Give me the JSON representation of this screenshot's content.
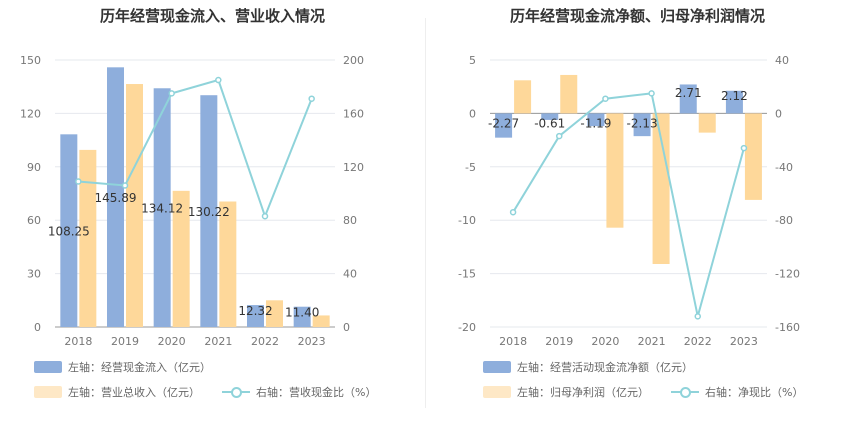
{
  "colors": {
    "bar1": "#8eaedc",
    "bar2": "#fed89a",
    "line": "#8fd3da",
    "grid": "#e6e8ee",
    "axis": "#999999"
  },
  "chart_data": [
    {
      "type": "bar",
      "title": "历年经营现金流入、营业收入情况",
      "categories": [
        "2018",
        "2019",
        "2020",
        "2021",
        "2022",
        "2023"
      ],
      "left_axis": {
        "ticks": [
          "0",
          "30",
          "60",
          "90",
          "120",
          "150"
        ],
        "ylim": [
          0,
          150
        ]
      },
      "right_axis": {
        "ticks": [
          "0",
          "40",
          "80",
          "120",
          "160",
          "200"
        ],
        "ylim": [
          0,
          200
        ]
      },
      "series": [
        {
          "name": "左轴：经营现金流入（亿元）",
          "axis": "left",
          "type": "bar",
          "values": [
            108.25,
            145.89,
            134.12,
            130.22,
            12.32,
            11.4
          ],
          "labels": [
            "108.25",
            "145.89",
            "134.12",
            "130.22",
            "12.32",
            "11.40"
          ]
        },
        {
          "name": "左轴：营业总收入（亿元）",
          "axis": "left",
          "type": "bar",
          "values": [
            99.5,
            136.5,
            76.5,
            70.5,
            15,
            6.5
          ]
        },
        {
          "name": "右轴：营收现金比（%）",
          "axis": "right",
          "type": "line",
          "values": [
            109,
            106,
            175,
            185,
            83,
            171
          ]
        }
      ]
    },
    {
      "type": "bar",
      "title": "历年经营现金流净额、归母净利润情况",
      "categories": [
        "2018",
        "2019",
        "2020",
        "2021",
        "2022",
        "2023"
      ],
      "left_axis": {
        "ticks": [
          "-20",
          "-15",
          "-10",
          "-5",
          "0",
          "5"
        ],
        "ylim": [
          -20,
          5
        ]
      },
      "right_axis": {
        "ticks": [
          "-160",
          "-120",
          "-80",
          "-40",
          "0",
          "40"
        ],
        "ylim": [
          -160,
          40
        ]
      },
      "series": [
        {
          "name": "左轴：经营活动现金流净额（亿元）",
          "axis": "left",
          "type": "bar",
          "values": [
            -2.27,
            -0.61,
            -1.19,
            -2.13,
            2.71,
            2.12
          ],
          "labels": [
            "-2.27",
            "-0.61",
            "-1.19",
            "-2.13",
            "2.71",
            "2.12"
          ]
        },
        {
          "name": "左轴：归母净利润（亿元）",
          "axis": "left",
          "type": "bar",
          "values": [
            3.1,
            3.6,
            -10.7,
            -14.1,
            -1.8,
            -8.1
          ]
        },
        {
          "name": "右轴：净现比（%）",
          "axis": "right",
          "type": "line",
          "values": [
            -74,
            -17,
            11,
            15,
            -152,
            -26
          ]
        }
      ]
    }
  ]
}
